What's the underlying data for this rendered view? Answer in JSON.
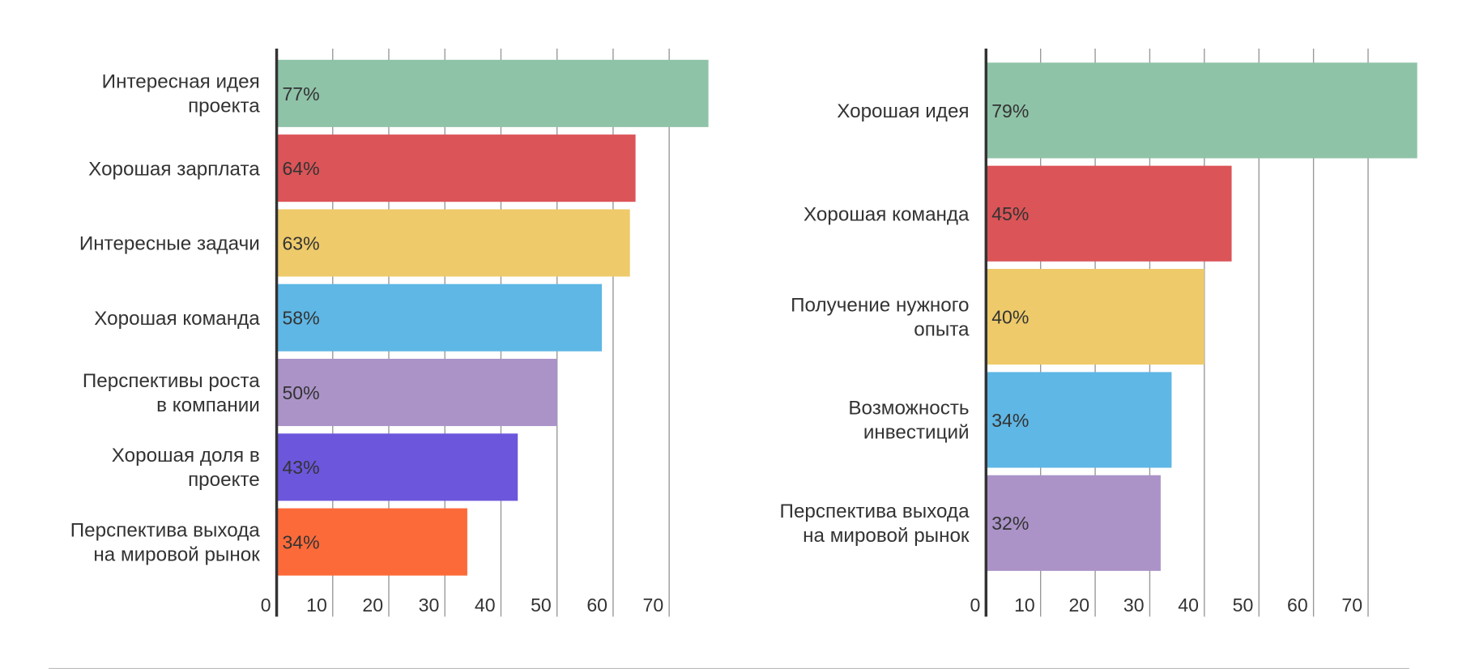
{
  "chart_data": [
    {
      "type": "bar",
      "orientation": "horizontal",
      "categories": [
        "Интересная идея\nпроекта",
        "Хорошая зарплата",
        "Интересные задачи",
        "Хорошая команда",
        "Перспективы роста\nв компании",
        "Хорошая доля в\nпроекте",
        "Перспектива выхода\nна мировой рынок"
      ],
      "values": [
        77,
        64,
        63,
        58,
        50,
        43,
        34
      ],
      "value_labels": [
        "77%",
        "64%",
        "63%",
        "58%",
        "50%",
        "43%",
        "34%"
      ],
      "colors": [
        "#8fc3a8",
        "#db5457",
        "#eeca6a",
        "#5fb7e5",
        "#ab93c8",
        "#6c56dc",
        "#fd6a3a"
      ],
      "xlim": [
        0,
        80
      ],
      "xticks": [
        0,
        10,
        20,
        30,
        40,
        50,
        60,
        70
      ],
      "grid": true
    },
    {
      "type": "bar",
      "orientation": "horizontal",
      "categories": [
        "Хорошая идея",
        "Хорошая команда",
        "Получение нужного\nопыта",
        "Возможность\nинвестиций",
        "Перспектива выхода\nна мировой рынок"
      ],
      "values": [
        79,
        45,
        40,
        34,
        32
      ],
      "value_labels": [
        "79%",
        "45%",
        "40%",
        "34%",
        "32%"
      ],
      "colors": [
        "#8fc3a8",
        "#db5457",
        "#eeca6a",
        "#5fb7e5",
        "#ab93c8"
      ],
      "xlim": [
        0,
        80
      ],
      "xticks": [
        0,
        10,
        20,
        30,
        40,
        50,
        60,
        70
      ],
      "grid": true
    }
  ]
}
